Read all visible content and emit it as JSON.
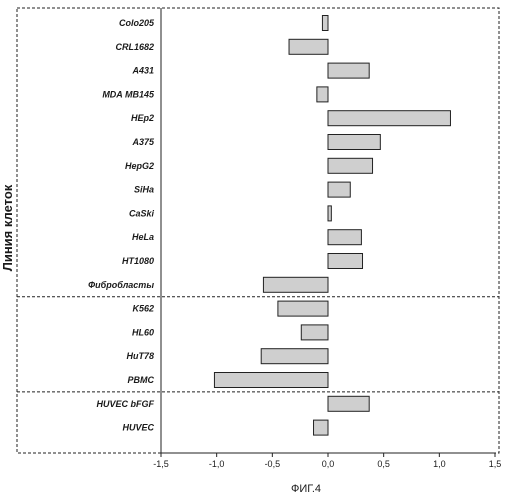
{
  "chart_data": {
    "type": "bar",
    "orientation": "horizontal",
    "categories": [
      "Colo205",
      "CRL1682",
      "A431",
      "MDA MB145",
      "HEp2",
      "A375",
      "HepG2",
      "SiHa",
      "CaSki",
      "HeLa",
      "HT1080",
      "Фибробласты",
      "K562",
      "HL60",
      "HuT78",
      "PBMC",
      "HUVEC bFGF",
      "HUVEC"
    ],
    "values": [
      -0.05,
      -0.35,
      0.37,
      -0.1,
      1.1,
      0.47,
      0.4,
      0.2,
      0.03,
      0.3,
      0.31,
      -0.58,
      -0.45,
      -0.24,
      -0.6,
      -1.02,
      0.37,
      -0.13
    ],
    "groups": [
      {
        "start": 0,
        "end": 11
      },
      {
        "start": 12,
        "end": 15
      },
      {
        "start": 16,
        "end": 17
      }
    ],
    "xlim": [
      -1.5,
      1.5
    ],
    "xticks": [
      "-1,5",
      "-1,0",
      "-0,5",
      "0,0",
      "0,5",
      "1,0",
      "1,5"
    ],
    "xtick_values": [
      -1.5,
      -1.0,
      -0.5,
      0.0,
      0.5,
      1.0,
      1.5
    ],
    "ylabel": "Линия клеток",
    "caption": "ФИГ.4",
    "bar_color": "#cfcfcf",
    "grid": false
  }
}
